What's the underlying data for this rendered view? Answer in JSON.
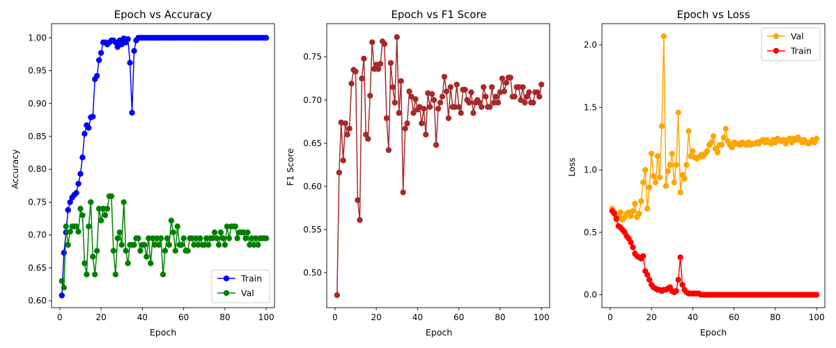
{
  "chart_data": [
    {
      "type": "line",
      "title": "Epoch vs Accuracy",
      "xlabel": "Epoch",
      "ylabel": "Accuracy",
      "xlim": [
        -4,
        104
      ],
      "ylim": [
        0.5895,
        1.0215
      ],
      "xticks": [
        0,
        20,
        40,
        60,
        80,
        100
      ],
      "yticks": [
        0.6,
        0.65,
        0.7,
        0.75,
        0.8,
        0.85,
        0.9,
        0.95,
        1.0
      ],
      "ytick_labels": [
        "0.60",
        "0.65",
        "0.70",
        "0.75",
        "0.80",
        "0.85",
        "0.90",
        "0.95",
        "1.00"
      ],
      "legend_position": "lower-right",
      "series": [
        {
          "name": "Train",
          "color": "#0000ff",
          "values": [
            0.608,
            0.673,
            0.704,
            0.738,
            0.75,
            0.757,
            0.761,
            0.764,
            0.778,
            0.793,
            0.818,
            0.854,
            0.867,
            0.863,
            0.879,
            0.88,
            0.937,
            0.942,
            0.966,
            0.977,
            0.993,
            0.993,
            0.99,
            0.993,
            0.996,
            0.996,
            0.993,
            0.986,
            0.996,
            0.99,
            0.999,
            0.993,
            0.998,
            0.962,
            0.886,
            0.98,
            0.996,
            1.0,
            1.0,
            1.0,
            1.0,
            1.0,
            1.0,
            1.0,
            1.0,
            1.0,
            1.0,
            1.0,
            1.0,
            1.0,
            1.0,
            1.0,
            1.0,
            1.0,
            1.0,
            1.0,
            1.0,
            1.0,
            1.0,
            1.0,
            1.0,
            1.0,
            1.0,
            1.0,
            1.0,
            1.0,
            1.0,
            1.0,
            1.0,
            1.0,
            1.0,
            1.0,
            1.0,
            1.0,
            1.0,
            1.0,
            1.0,
            1.0,
            1.0,
            1.0,
            1.0,
            1.0,
            1.0,
            1.0,
            1.0,
            1.0,
            1.0,
            1.0,
            1.0,
            1.0,
            1.0,
            1.0,
            1.0,
            1.0,
            1.0,
            1.0,
            1.0,
            1.0,
            1.0,
            1.0
          ]
        },
        {
          "name": "Val",
          "color": "#008000",
          "values": [
            0.63,
            0.62,
            0.713,
            0.685,
            0.705,
            0.713,
            0.713,
            0.713,
            0.705,
            0.74,
            0.73,
            0.657,
            0.64,
            0.713,
            0.75,
            0.667,
            0.64,
            0.676,
            0.74,
            0.722,
            0.74,
            0.73,
            0.74,
            0.759,
            0.759,
            0.676,
            0.64,
            0.695,
            0.704,
            0.685,
            0.75,
            0.676,
            0.657,
            0.685,
            0.685,
            0.685,
            0.695,
            0.695,
            0.676,
            0.685,
            0.685,
            0.667,
            0.695,
            0.657,
            0.695,
            0.685,
            0.695,
            0.685,
            0.695,
            0.64,
            0.676,
            0.695,
            0.685,
            0.722,
            0.704,
            0.676,
            0.713,
            0.685,
            0.685,
            0.695,
            0.676,
            0.676,
            0.695,
            0.695,
            0.685,
            0.695,
            0.685,
            0.695,
            0.685,
            0.685,
            0.695,
            0.685,
            0.695,
            0.695,
            0.704,
            0.695,
            0.685,
            0.704,
            0.695,
            0.685,
            0.713,
            0.695,
            0.713,
            0.713,
            0.713,
            0.695,
            0.704,
            0.704,
            0.704,
            0.695,
            0.704,
            0.685,
            0.695,
            0.685,
            0.695,
            0.685,
            0.695,
            0.695,
            0.695,
            0.695
          ]
        }
      ]
    },
    {
      "type": "line",
      "title": "Epoch vs F1 Score",
      "xlabel": "Epoch",
      "ylabel": "F1 Score",
      "xlim": [
        -4,
        104
      ],
      "ylim": [
        0.4595,
        0.7885
      ],
      "xticks": [
        0,
        20,
        40,
        60,
        80,
        100
      ],
      "yticks": [
        0.5,
        0.55,
        0.6,
        0.65,
        0.7,
        0.75
      ],
      "ytick_labels": [
        "0.50",
        "0.55",
        "0.60",
        "0.65",
        "0.70",
        "0.75"
      ],
      "series": [
        {
          "name": "",
          "color": "#a52a2a",
          "values": [
            0.474,
            0.616,
            0.674,
            0.63,
            0.673,
            0.66,
            0.667,
            0.719,
            0.735,
            0.733,
            0.584,
            0.561,
            0.725,
            0.748,
            0.66,
            0.655,
            0.705,
            0.767,
            0.736,
            0.741,
            0.736,
            0.742,
            0.768,
            0.765,
            0.679,
            0.642,
            0.743,
            0.715,
            0.697,
            0.773,
            0.685,
            0.722,
            0.593,
            0.667,
            0.673,
            0.71,
            0.704,
            0.685,
            0.701,
            0.689,
            0.692,
            0.673,
            0.69,
            0.66,
            0.708,
            0.692,
            0.707,
            0.7,
            0.648,
            0.69,
            0.697,
            0.704,
            0.727,
            0.71,
            0.679,
            0.715,
            0.692,
            0.692,
            0.718,
            0.692,
            0.685,
            0.712,
            0.712,
            0.7,
            0.697,
            0.709,
            0.685,
            0.697,
            0.7,
            0.697,
            0.692,
            0.715,
            0.704,
            0.692,
            0.692,
            0.715,
            0.697,
            0.704,
            0.697,
            0.709,
            0.725,
            0.71,
            0.72,
            0.726,
            0.726,
            0.704,
            0.704,
            0.715,
            0.715,
            0.7,
            0.715,
            0.697,
            0.704,
            0.709,
            0.697,
            0.697,
            0.709,
            0.709,
            0.704,
            0.718
          ]
        }
      ]
    },
    {
      "type": "line",
      "title": "Epoch vs Loss",
      "xlabel": "Epoch",
      "ylabel": "Loss",
      "xlim": [
        -4,
        104
      ],
      "ylim": [
        -0.103,
        2.171
      ],
      "xticks": [
        0,
        20,
        40,
        60,
        80,
        100
      ],
      "yticks": [
        0.0,
        0.5,
        1.0,
        1.5,
        2.0
      ],
      "ytick_labels": [
        "0.0",
        "0.5",
        "1.0",
        "1.5",
        "2.0"
      ],
      "legend_position": "upper-right",
      "series": [
        {
          "name": "Val",
          "color": "#ffa500",
          "values": [
            0.69,
            0.66,
            0.6,
            0.62,
            0.66,
            0.6,
            0.62,
            0.65,
            0.66,
            0.63,
            0.67,
            0.73,
            0.62,
            0.65,
            0.75,
            0.9,
            1.0,
            0.69,
            0.86,
            1.13,
            0.95,
            0.9,
            1.11,
            0.94,
            1.35,
            2.07,
            0.87,
            0.99,
            1.04,
            1.13,
            0.9,
            1.04,
            1.46,
            0.82,
            0.96,
            0.93,
            1.04,
            1.31,
            1.11,
            1.15,
            1.1,
            1.09,
            1.1,
            1.12,
            1.11,
            1.13,
            1.15,
            1.2,
            1.22,
            1.27,
            1.17,
            1.14,
            1.2,
            1.2,
            1.26,
            1.33,
            1.23,
            1.2,
            1.18,
            1.22,
            1.21,
            1.21,
            1.2,
            1.22,
            1.21,
            1.2,
            1.22,
            1.2,
            1.21,
            1.21,
            1.22,
            1.21,
            1.23,
            1.24,
            1.22,
            1.24,
            1.22,
            1.21,
            1.24,
            1.22,
            1.25,
            1.24,
            1.23,
            1.24,
            1.21,
            1.24,
            1.25,
            1.22,
            1.25,
            1.24,
            1.26,
            1.24,
            1.22,
            1.24,
            1.22,
            1.21,
            1.22,
            1.24,
            1.22,
            1.25
          ]
        },
        {
          "name": "Train",
          "color": "#ff0000",
          "values": [
            0.67,
            0.65,
            0.61,
            0.55,
            0.54,
            0.52,
            0.5,
            0.47,
            0.45,
            0.42,
            0.38,
            0.33,
            0.31,
            0.3,
            0.29,
            0.31,
            0.19,
            0.16,
            0.12,
            0.08,
            0.06,
            0.05,
            0.04,
            0.04,
            0.03,
            0.04,
            0.04,
            0.05,
            0.06,
            0.03,
            0.02,
            0.03,
            0.12,
            0.3,
            0.08,
            0.04,
            0.02,
            0.01,
            0.01,
            0.01,
            0.01,
            0.01,
            0.01,
            0.0,
            0.0,
            0.0,
            0.0,
            0.0,
            0.0,
            0.0,
            0.0,
            0.0,
            0.0,
            0.0,
            0.0,
            0.0,
            0.0,
            0.0,
            0.0,
            0.0,
            0.0,
            0.0,
            0.0,
            0.0,
            0.0,
            0.0,
            0.0,
            0.0,
            0.0,
            0.0,
            0.0,
            0.0,
            0.0,
            0.0,
            0.0,
            0.0,
            0.0,
            0.0,
            0.0,
            0.0,
            0.0,
            0.0,
            0.0,
            0.0,
            0.0,
            0.0,
            0.0,
            0.0,
            0.0,
            0.0,
            0.0,
            0.0,
            0.0,
            0.0,
            0.0,
            0.0,
            0.0,
            0.0,
            0.0,
            0.0
          ]
        }
      ]
    }
  ]
}
